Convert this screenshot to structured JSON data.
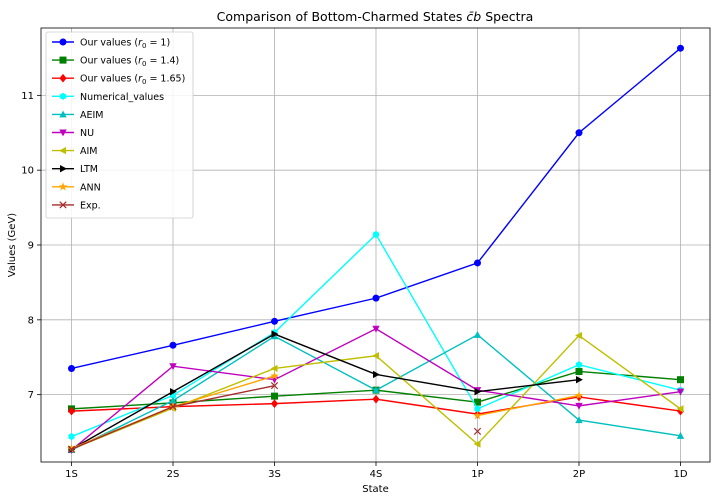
{
  "chart_data": {
    "type": "line",
    "title": "Comparison of Bottom-Charmed States c̄b Spectra",
    "title_main": "Comparison of Bottom-Charmed States ",
    "title_symbol_base": "c",
    "title_symbol_bar": "̄",
    "title_symbol_tail": "b",
    "title_suffix": " Spectra",
    "xlabel": "State",
    "ylabel": "Values (GeV)",
    "categories": [
      "1S",
      "2S",
      "3S",
      "4S",
      "1P",
      "2P",
      "1D"
    ],
    "ylim": [
      6.1,
      11.9
    ],
    "yticks": [
      7,
      8,
      9,
      10,
      11
    ],
    "grid": true,
    "legend_position": "top-left",
    "series": [
      {
        "name": "Our values (r₀ = 1)",
        "name_main": "Our values (",
        "name_math": "r",
        "name_sub": "0",
        "name_tail": " = 1)",
        "color": "#0000ff",
        "marker": "circle",
        "values": [
          7.35,
          7.66,
          7.98,
          8.29,
          8.76,
          10.5,
          11.63
        ]
      },
      {
        "name": "Our values (r₀ = 1.4)",
        "name_main": "Our values (",
        "name_math": "r",
        "name_sub": "0",
        "name_tail": " = 1.4)",
        "color": "#008000",
        "marker": "square",
        "values": [
          6.81,
          6.89,
          6.98,
          7.06,
          6.9,
          7.31,
          7.2
        ]
      },
      {
        "name": "Our values (r₀ = 1.65)",
        "name_main": "Our values (",
        "name_math": "r",
        "name_sub": "0",
        "name_tail": " = 1.65)",
        "color": "#ff0000",
        "marker": "diamond",
        "values": [
          6.78,
          6.84,
          6.88,
          6.94,
          6.74,
          6.97,
          6.78
        ]
      },
      {
        "name": "Numerical_values",
        "color": "#00ffff",
        "marker": "hexagon",
        "values": [
          6.44,
          6.99,
          7.83,
          9.14,
          6.81,
          7.4,
          7.06
        ]
      },
      {
        "name": "AEIM",
        "color": "#00bfbf",
        "marker": "triangle-up",
        "values": [
          6.26,
          6.92,
          7.78,
          7.06,
          7.8,
          6.66,
          6.45
        ]
      },
      {
        "name": "NU",
        "color": "#bf00bf",
        "marker": "triangle-down",
        "values": [
          6.26,
          7.38,
          7.2,
          7.88,
          7.06,
          6.85,
          7.04
        ]
      },
      {
        "name": "AIM",
        "color": "#bfbf00",
        "marker": "triangle-left",
        "values": [
          6.27,
          6.82,
          7.35,
          7.52,
          6.34,
          7.79,
          6.81
        ]
      },
      {
        "name": "LTM",
        "color": "#000000",
        "marker": "triangle-right",
        "values": [
          6.27,
          7.04,
          7.81,
          7.27,
          7.04,
          7.2,
          null
        ]
      },
      {
        "name": "ANN",
        "color": "#ffa500",
        "marker": "star",
        "values": [
          6.28,
          6.84,
          7.25,
          null,
          6.72,
          6.99,
          null
        ]
      },
      {
        "name": "Exp.",
        "color": "#a52a2a",
        "marker": "x",
        "values": [
          6.27,
          6.84,
          7.12,
          null,
          6.51,
          null,
          null
        ]
      }
    ]
  }
}
